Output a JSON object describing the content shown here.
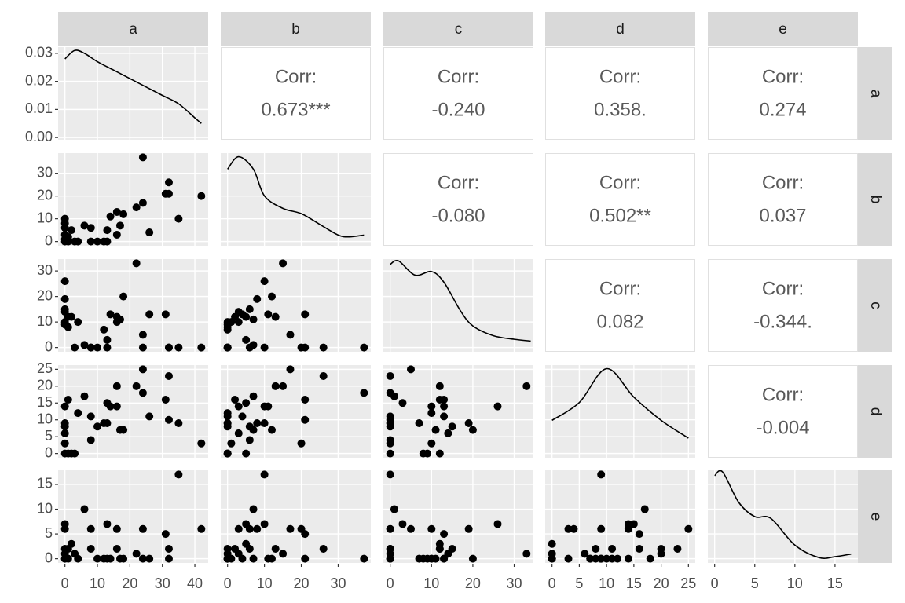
{
  "chart_data": {
    "type": "scatter-matrix",
    "variables": [
      {
        "name": "a",
        "values": [
          0,
          0,
          0,
          0,
          0,
          0,
          1,
          1,
          2,
          3,
          4,
          6,
          8,
          8,
          10,
          12,
          13,
          13,
          14,
          16,
          16,
          17,
          18,
          22,
          24,
          24,
          26,
          31,
          32,
          32,
          35,
          42
        ],
        "lim": [
          -2.1,
          44.1
        ],
        "ticks": [
          0,
          10,
          20,
          30,
          40
        ]
      },
      {
        "name": "b",
        "values": [
          10,
          8,
          6,
          3,
          1,
          0,
          0,
          2,
          5,
          0,
          0,
          7,
          6,
          0,
          0,
          0,
          5,
          0,
          11,
          13,
          3,
          7,
          12,
          15,
          17,
          37,
          4,
          21,
          26,
          21,
          10,
          20
        ],
        "lim": [
          -1.85,
          38.85
        ],
        "ticks": [
          0,
          10,
          20,
          30
        ]
      },
      {
        "name": "c",
        "values": [
          26,
          19,
          15,
          14,
          10,
          9,
          8,
          12,
          12,
          0,
          10,
          1,
          0,
          0,
          0,
          7,
          3,
          0,
          13,
          12,
          10,
          11,
          20,
          33,
          5,
          0,
          13,
          13,
          0,
          0,
          0,
          0
        ],
        "lim": [
          -1.65,
          34.65
        ],
        "ticks": [
          0,
          10,
          20,
          30
        ]
      },
      {
        "name": "d",
        "values": [
          14,
          9,
          8,
          6,
          3,
          0,
          0,
          16,
          0,
          0,
          12,
          17,
          4,
          11,
          8,
          9,
          15,
          9,
          14,
          20,
          14,
          7,
          7,
          20,
          25,
          18,
          11,
          16,
          23,
          10,
          9,
          3
        ],
        "lim": [
          -1.25,
          26.25
        ],
        "ticks": [
          0,
          5,
          10,
          15,
          20,
          25
        ]
      },
      {
        "name": "e",
        "values": [
          7,
          6,
          2,
          1,
          0,
          0,
          0,
          2,
          3,
          1,
          0,
          10,
          6,
          2,
          0,
          0,
          7,
          0,
          0,
          2,
          6,
          0,
          0,
          1,
          6,
          0,
          0,
          5,
          2,
          0,
          17,
          6
        ],
        "lim": [
          -0.85,
          17.85
        ],
        "ticks": [
          0,
          5,
          10,
          15
        ]
      }
    ],
    "densities": [
      {
        "x": [
          0,
          3,
          6,
          10,
          15,
          20,
          25,
          30,
          35,
          40,
          42
        ],
        "y": [
          0.028,
          0.031,
          0.03,
          0.027,
          0.024,
          0.021,
          0.018,
          0.015,
          0.012,
          0.007,
          0.005
        ],
        "ylim": [
          -0.0008,
          0.0322
        ],
        "yticks": [
          {
            "value": 0,
            "label": "0.00"
          },
          {
            "value": 0.01,
            "label": "0.01"
          },
          {
            "value": 0.02,
            "label": "0.02"
          },
          {
            "value": 0.03,
            "label": "0.03"
          }
        ]
      },
      {
        "x": [
          0,
          3,
          7,
          10,
          15,
          20,
          25,
          30,
          33,
          37
        ],
        "y": [
          0.043,
          0.05,
          0.043,
          0.028,
          0.021,
          0.018,
          0.012,
          0.006,
          0.005,
          0.006
        ],
        "ylim": [
          0,
          0.052
        ]
      },
      {
        "x": [
          0,
          2,
          6,
          10,
          13,
          17,
          20,
          25,
          30,
          34
        ],
        "y": [
          0.049,
          0.051,
          0.043,
          0.045,
          0.039,
          0.023,
          0.0145,
          0.009,
          0.007,
          0.006
        ],
        "ylim": [
          0,
          0.052
        ]
      },
      {
        "x": [
          0,
          5,
          10,
          15,
          20,
          25
        ],
        "y": [
          0.021,
          0.031,
          0.05,
          0.034,
          0.021,
          0.011
        ],
        "ylim": [
          0,
          0.052
        ]
      },
      {
        "x": [
          0,
          1,
          3,
          5,
          7,
          10,
          13,
          15,
          17
        ],
        "y": [
          0.049,
          0.051,
          0.034,
          0.026,
          0.025,
          0.01,
          0.003,
          0.0035,
          0.005
        ],
        "ylim": [
          0,
          0.052
        ]
      }
    ],
    "corr_title": "Corr:",
    "correlations": {
      "a": {
        "b": {
          "value": 0.673,
          "label": "0.673***"
        },
        "c": {
          "value": -0.24,
          "label": "-0.240"
        },
        "d": {
          "value": 0.358,
          "label": "0.358."
        },
        "e": {
          "value": 0.274,
          "label": "0.274"
        }
      },
      "b": {
        "c": {
          "value": -0.08,
          "label": "-0.080"
        },
        "d": {
          "value": 0.502,
          "label": "0.502**"
        },
        "e": {
          "value": 0.037,
          "label": "0.037"
        }
      },
      "c": {
        "d": {
          "value": 0.082,
          "label": "0.082"
        },
        "e": {
          "value": -0.344,
          "label": "-0.344."
        }
      },
      "d": {
        "e": {
          "value": -0.004,
          "label": "-0.004"
        }
      }
    },
    "point_color": "#000000",
    "grid": true
  }
}
